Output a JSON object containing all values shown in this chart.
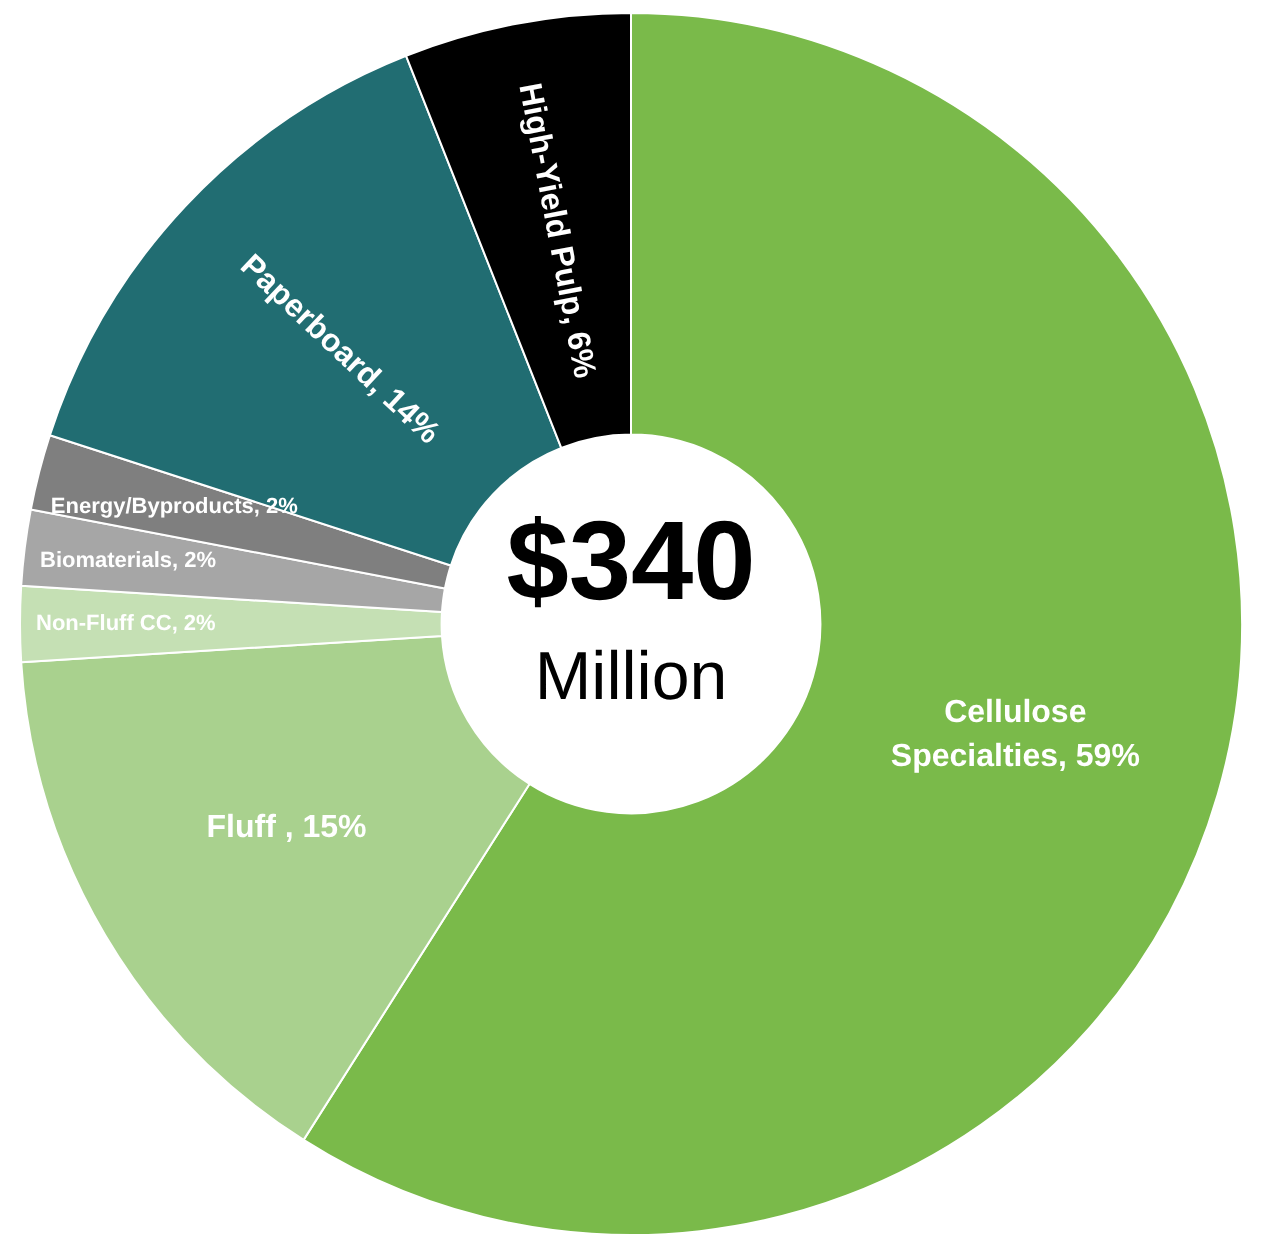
{
  "chart_data": {
    "type": "donut",
    "categories": [
      "Cellulose Specialties",
      "Fluff ",
      "Non-Fluff CC",
      "Biomaterials",
      "Energy/Byproducts",
      "Paperboard",
      "High-Yield Pulp"
    ],
    "values": [
      59,
      15,
      2,
      2,
      2,
      14,
      6
    ],
    "value_labels": [
      "59%",
      "15%",
      "2%",
      "2%",
      "2%",
      "14%",
      "6%"
    ],
    "colors": [
      "#7aba4a",
      "#a9d18e",
      "#c5e0b4",
      "#a6a6a6",
      "#7f7f7f",
      "#216d72",
      "#000000"
    ],
    "annotations": [
      "$340",
      "Million"
    ]
  }
}
